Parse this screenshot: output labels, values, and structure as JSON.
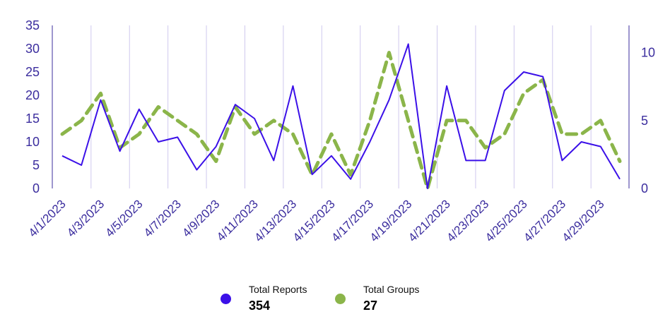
{
  "chart_data": {
    "type": "line",
    "title": "",
    "x": [
      "4/1/2023",
      "4/2/2023",
      "4/3/2023",
      "4/4/2023",
      "4/5/2023",
      "4/6/2023",
      "4/7/2023",
      "4/8/2023",
      "4/9/2023",
      "4/10/2023",
      "4/11/2023",
      "4/12/2023",
      "4/13/2023",
      "4/14/2023",
      "4/15/2023",
      "4/16/2023",
      "4/17/2023",
      "4/18/2023",
      "4/19/2023",
      "4/20/2023",
      "4/21/2023",
      "4/22/2023",
      "4/23/2023",
      "4/24/2023",
      "4/25/2023",
      "4/26/2023",
      "4/27/2023",
      "4/28/2023",
      "4/29/2023",
      "4/30/2023"
    ],
    "x_tick_labels": [
      "4/1/2023",
      "4/3/2023",
      "4/5/2023",
      "4/7/2023",
      "4/9/2023",
      "4/11/2023",
      "4/13/2023",
      "4/15/2023",
      "4/17/2023",
      "4/19/2023",
      "4/21/2023",
      "4/23/2023",
      "4/25/2023",
      "4/27/2023",
      "4/29/2023"
    ],
    "y_left": {
      "ylim": [
        0,
        35
      ],
      "ticks": [
        0,
        5,
        10,
        15,
        20,
        25,
        30,
        35
      ]
    },
    "y_right": {
      "ylim": [
        0,
        12
      ],
      "ticks": [
        0,
        5,
        10
      ]
    },
    "grid": "vertical",
    "legend_position": "bottom",
    "series": [
      {
        "name": "Total Reports",
        "axis": "left",
        "color": "#3b10e8",
        "style": "solid",
        "values": [
          7,
          5,
          19,
          8,
          17,
          10,
          11,
          4,
          9,
          18,
          15,
          6,
          22,
          3,
          7,
          2,
          10,
          19,
          31,
          0,
          22,
          6,
          6,
          21,
          25,
          24,
          6,
          10,
          9,
          2
        ]
      },
      {
        "name": "Total Groups",
        "axis": "right",
        "color": "#8bb54a",
        "style": "dashed",
        "values": [
          4,
          5,
          7,
          3,
          4,
          6,
          5,
          4,
          2,
          6,
          4,
          5,
          4,
          1,
          4,
          1,
          5,
          10,
          5,
          0,
          5,
          5,
          3,
          4,
          7,
          8,
          4,
          4,
          5,
          2
        ]
      }
    ]
  },
  "legend": [
    {
      "label": "Total Reports",
      "value": "354",
      "color": "#3b10e8"
    },
    {
      "label": "Total Groups",
      "value": "27",
      "color": "#8bb54a"
    }
  ]
}
